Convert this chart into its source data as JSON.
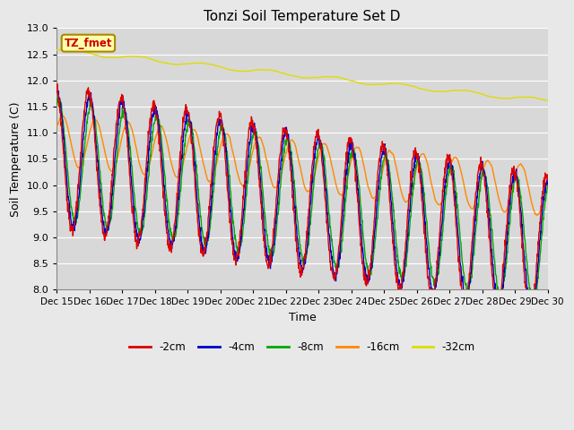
{
  "title": "Tonzi Soil Temperature Set D",
  "xlabel": "Time",
  "ylabel": "Soil Temperature (C)",
  "ylim": [
    8.0,
    13.0
  ],
  "yticks": [
    8.0,
    8.5,
    9.0,
    9.5,
    10.0,
    10.5,
    11.0,
    11.5,
    12.0,
    12.5,
    13.0
  ],
  "xtick_labels": [
    "Dec 15",
    "Dec 16",
    "Dec 17",
    "Dec 18",
    "Dec 19",
    "Dec 20",
    "Dec 21",
    "Dec 22",
    "Dec 23",
    "Dec 24",
    "Dec 25",
    "Dec 26",
    "Dec 27",
    "Dec 28",
    "Dec 29",
    "Dec 30"
  ],
  "legend_label": "TZ_fmet",
  "series_labels": [
    "-2cm",
    "-4cm",
    "-8cm",
    "-16cm",
    "-32cm"
  ],
  "series_colors": [
    "#dd0000",
    "#0000cc",
    "#00aa00",
    "#ff8800",
    "#dddd00"
  ],
  "fig_bg_color": "#e8e8e8",
  "plot_bg_color": "#d8d8d8",
  "grid_color": "#ffffff"
}
